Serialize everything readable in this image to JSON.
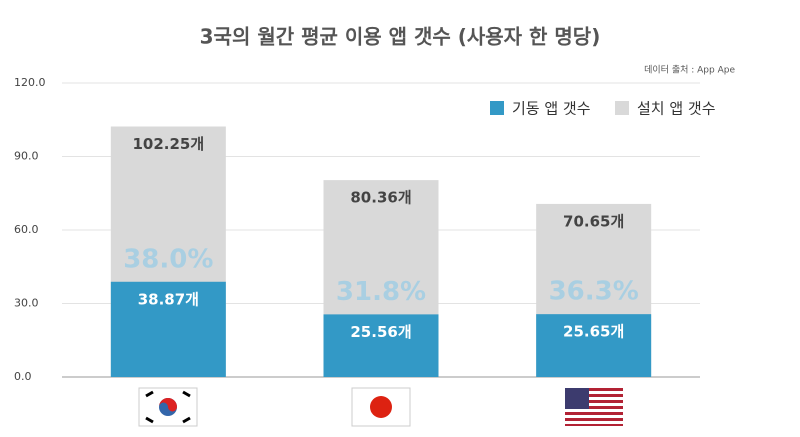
{
  "chart_data": {
    "type": "bar",
    "title": "3국의 월간 평균 이용 앱 갯수 (사용자 한 명당)",
    "source": "데이터 출처 : App Ape",
    "categories": [
      null,
      null,
      null
    ],
    "series": [
      {
        "name": "기동 앱 갯수",
        "color": "#3399c6",
        "values": [
          38.87,
          25.56,
          25.65
        ],
        "value_labels": [
          "38.87개",
          "25.56개",
          "25.65개"
        ]
      },
      {
        "name": "설치 앱 갯수",
        "color": "#d9d9d9",
        "values": [
          102.25,
          80.36,
          70.65
        ],
        "value_labels": [
          "102.25개",
          "80.36개",
          "70.65개"
        ]
      }
    ],
    "share_labels": [
      "38.0%",
      "31.8%",
      "36.3%"
    ],
    "ylim": [
      0,
      120
    ],
    "yticks": [
      {
        "value": 0,
        "label": "0.0"
      },
      {
        "value": 30,
        "label": "30.0"
      },
      {
        "value": 60,
        "label": "60.0"
      },
      {
        "value": 90,
        "label": "90.0"
      },
      {
        "value": 120,
        "label": "120.0"
      }
    ],
    "grid": true,
    "overlap": true
  }
}
